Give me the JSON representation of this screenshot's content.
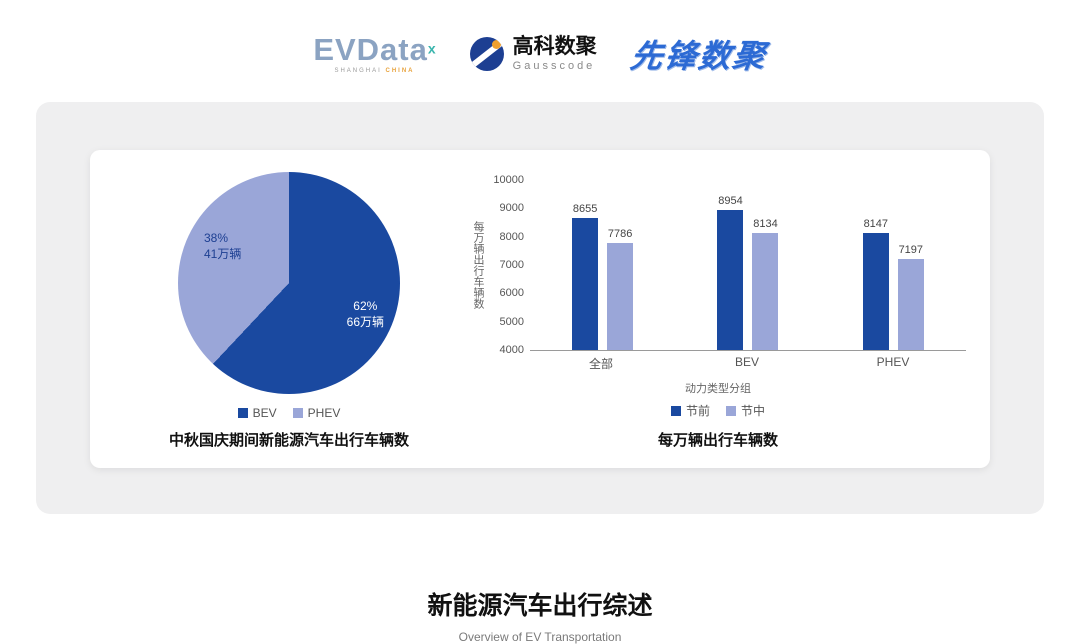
{
  "header": {
    "evdata": {
      "name": "EVData",
      "sup": "x",
      "tagline_left": "SHANGHAI ",
      "tagline_right": "CHINA"
    },
    "gausscode": {
      "cn": "高科数聚",
      "en": "Gausscode"
    },
    "xianfeng": {
      "text": "先锋数聚"
    }
  },
  "colors": {
    "primary": "#1a49a0",
    "secondary": "#9aa6d8"
  },
  "chart_data": [
    {
      "type": "pie",
      "title": "中秋国庆期间新能源汽车出行车辆数",
      "slices": [
        {
          "label": "BEV",
          "percent": 62,
          "percent_label": "62%",
          "value_label": "66万辆",
          "color": "#1a49a0"
        },
        {
          "label": "PHEV",
          "percent": 38,
          "percent_label": "38%",
          "value_label": "41万辆",
          "color": "#9aa6d8"
        }
      ],
      "legend_position": "bottom"
    },
    {
      "type": "bar",
      "title": "每万辆出行车辆数",
      "categories": [
        "全部",
        "BEV",
        "PHEV"
      ],
      "series": [
        {
          "name": "节前",
          "values": [
            8655,
            8954,
            8147
          ],
          "color": "#1a49a0"
        },
        {
          "name": "节中",
          "values": [
            7786,
            8134,
            7197
          ],
          "color": "#9aa6d8"
        }
      ],
      "ylabel": "每万辆出行车辆数",
      "xlabel": "动力类型分组",
      "ylim": [
        4000,
        10000
      ],
      "yticks": [
        4000,
        5000,
        6000,
        7000,
        8000,
        9000,
        10000
      ],
      "grid": false,
      "legend_position": "bottom"
    }
  ],
  "footer": {
    "title": "新能源汽车出行综述",
    "subtitle": "Overview of EV Transportation"
  }
}
